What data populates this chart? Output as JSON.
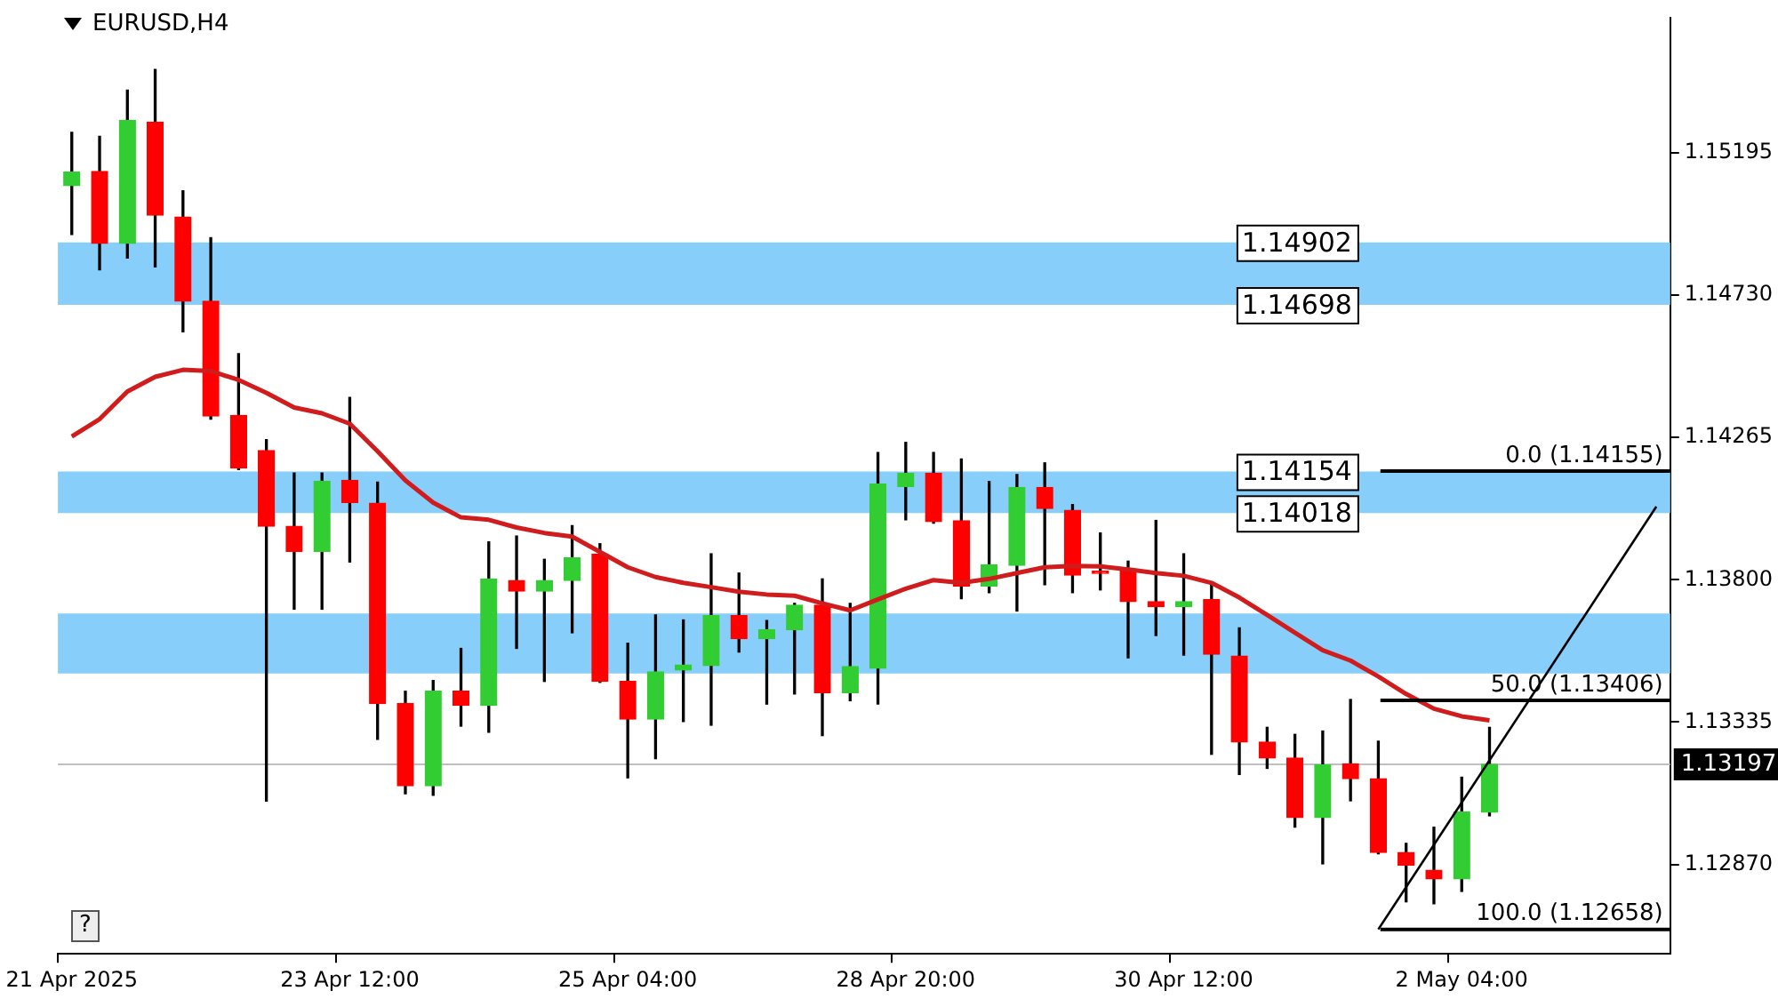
{
  "chart_data": {
    "type": "candlestick",
    "title": "EURUSD,H4",
    "categories": [
      "21 Apr 2025",
      null,
      null,
      null,
      null,
      null,
      null,
      null,
      null,
      null,
      "23 Apr 12:00",
      null,
      null,
      null,
      null,
      null,
      null,
      null,
      null,
      null,
      "25 Apr 04:00",
      null,
      null,
      null,
      null,
      null,
      null,
      null,
      null,
      null,
      "28 Apr 20:00",
      null,
      null,
      null,
      null,
      null,
      null,
      null,
      null,
      null,
      "30 Apr 12:00",
      null,
      null,
      null,
      null,
      null,
      null,
      null,
      null,
      null,
      "2 May 04:00",
      null,
      null,
      null,
      null,
      null,
      null,
      null
    ],
    "ohlc": [
      [
        1.15088,
        1.15262,
        1.14928,
        1.15132
      ],
      [
        1.15134,
        1.15249,
        1.14813,
        1.14899
      ],
      [
        1.14899,
        1.154,
        1.14851,
        1.15301
      ],
      [
        1.15295,
        1.15467,
        1.14822,
        1.14991
      ],
      [
        1.14985,
        1.15071,
        1.1461,
        1.1471
      ],
      [
        1.1471,
        1.14918,
        1.14325,
        1.14335
      ],
      [
        1.14337,
        1.14539,
        1.1416,
        1.14165
      ],
      [
        1.14222,
        1.14258,
        1.13077,
        1.13975
      ],
      [
        1.13975,
        1.14149,
        1.13704,
        1.13893
      ],
      [
        1.13893,
        1.14149,
        1.13704,
        1.14122
      ],
      [
        1.14125,
        1.14396,
        1.13858,
        1.14053
      ],
      [
        1.1405,
        1.14119,
        1.13279,
        1.13396
      ],
      [
        1.13396,
        1.13436,
        1.13101,
        1.13127
      ],
      [
        1.13127,
        1.13471,
        1.13096,
        1.13436
      ],
      [
        1.13436,
        1.13576,
        1.13322,
        1.1339
      ],
      [
        1.1339,
        1.13924,
        1.13302,
        1.13803
      ],
      [
        1.13798,
        1.13943,
        1.13576,
        1.13763
      ],
      [
        1.13763,
        1.13867,
        1.13468,
        1.13798
      ],
      [
        1.13798,
        1.13977,
        1.13627,
        1.13872
      ],
      [
        1.13884,
        1.13918,
        1.13465,
        1.13468
      ],
      [
        1.13468,
        1.13593,
        1.13153,
        1.13345
      ],
      [
        1.13345,
        1.13685,
        1.13216,
        1.13499
      ],
      [
        1.13505,
        1.13669,
        1.13337,
        1.13522
      ],
      [
        1.1352,
        1.13885,
        1.13325,
        1.13683
      ],
      [
        1.13683,
        1.13822,
        1.13564,
        1.13608
      ],
      [
        1.13608,
        1.13667,
        1.13394,
        1.13637
      ],
      [
        1.13637,
        1.13723,
        1.13427,
        1.13717
      ],
      [
        1.13717,
        1.13803,
        1.13291,
        1.13431
      ],
      [
        1.13431,
        1.13723,
        1.13405,
        1.13517
      ],
      [
        1.13511,
        1.14216,
        1.13394,
        1.14113
      ],
      [
        1.14105,
        1.14249,
        1.13996,
        1.14148
      ],
      [
        1.14148,
        1.14216,
        1.13985,
        1.1399
      ],
      [
        1.13993,
        1.14195,
        1.13738,
        1.1378
      ],
      [
        1.1378,
        1.14121,
        1.13758,
        1.13849
      ],
      [
        1.13847,
        1.14144,
        1.13698,
        1.14102
      ],
      [
        1.14102,
        1.14182,
        1.13784,
        1.14033
      ],
      [
        1.14027,
        1.14046,
        1.13758,
        1.13815
      ],
      [
        1.13828,
        1.13953,
        1.13767,
        1.13821
      ],
      [
        1.13834,
        1.13861,
        1.13545,
        1.13729
      ],
      [
        1.13729,
        1.13994,
        1.13618,
        1.13712
      ],
      [
        1.13712,
        1.13885,
        1.13554,
        1.13729
      ],
      [
        1.13735,
        1.1379,
        1.1323,
        1.13557
      ],
      [
        1.13551,
        1.13643,
        1.13164,
        1.1327
      ],
      [
        1.1327,
        1.13318,
        1.13184,
        1.13218
      ],
      [
        1.13218,
        1.13295,
        1.12992,
        1.13023
      ],
      [
        1.13023,
        1.13306,
        1.12872,
        1.13195
      ],
      [
        1.13199,
        1.13409,
        1.13078,
        1.1315
      ],
      [
        1.1315,
        1.13273,
        1.12905,
        1.12909
      ],
      [
        1.12909,
        1.12939,
        1.12748,
        1.12868
      ],
      [
        1.12851,
        1.12992,
        1.12742,
        1.12823
      ],
      [
        1.12823,
        1.13155,
        1.12782,
        1.13041
      ],
      [
        1.13041,
        1.13318,
        1.13029,
        1.13197
      ],
      null,
      null,
      null,
      null,
      null,
      null
    ],
    "colors": [
      "#32cd32",
      "#ff0000",
      "#32cd32",
      "#ff0000",
      "#ff0000",
      "#ff0000",
      "#ff0000",
      "#ff0000",
      "#ff0000",
      "#32cd32",
      "#ff0000",
      "#ff0000",
      "#ff0000",
      "#32cd32",
      "#ff0000",
      "#32cd32",
      "#ff0000",
      "#32cd32",
      "#32cd32",
      "#ff0000",
      "#ff0000",
      "#32cd32",
      "#32cd32",
      "#32cd32",
      "#ff0000",
      "#32cd32",
      "#32cd32",
      "#ff0000",
      "#32cd32",
      "#32cd32",
      "#32cd32",
      "#ff0000",
      "#ff0000",
      "#32cd32",
      "#32cd32",
      "#ff0000",
      "#ff0000",
      "#ff0000",
      "#ff0000",
      "#ff0000",
      "#32cd32",
      "#ff0000",
      "#ff0000",
      "#ff0000",
      "#ff0000",
      "#32cd32",
      "#ff0000",
      "#ff0000",
      "#ff0000",
      "#ff0000",
      "#32cd32",
      "#32cd32",
      null,
      null,
      null,
      null,
      null,
      null
    ],
    "series": [
      {
        "type": "line",
        "color": "#d01c1c",
        "values": [
          1.14268,
          1.14325,
          1.14415,
          1.14463,
          1.14486,
          1.14482,
          1.14453,
          1.14411,
          1.14363,
          1.14344,
          1.1431,
          1.1422,
          1.14125,
          1.14052,
          1.14004,
          1.13996,
          1.13971,
          1.13953,
          1.13941,
          1.13891,
          1.13841,
          1.13809,
          1.1379,
          1.13776,
          1.13761,
          1.13752,
          1.13748,
          1.13723,
          1.137,
          1.13736,
          1.13771,
          1.13799,
          1.1379,
          1.13803,
          1.13822,
          1.13841,
          1.13845,
          1.13844,
          1.13834,
          1.13822,
          1.13813,
          1.1379,
          1.13742,
          1.13685,
          1.13627,
          1.1357,
          1.13536,
          1.13484,
          1.13427,
          1.13379,
          1.13354,
          1.13341,
          null,
          null,
          null,
          null,
          null,
          null
        ]
      },
      {
        "type": "line",
        "color": "#000000",
        "values": [
          null,
          null,
          null,
          null,
          null,
          null,
          null,
          null,
          null,
          null,
          null,
          null,
          null,
          null,
          null,
          null,
          null,
          null,
          null,
          null,
          null,
          null,
          null,
          null,
          null,
          null,
          null,
          null,
          null,
          null,
          null,
          null,
          null,
          null,
          null,
          null,
          null,
          null,
          null,
          null,
          null,
          null,
          null,
          null,
          null,
          null,
          null,
          1.12658,
          null,
          null,
          null,
          null,
          null,
          null,
          null,
          null,
          null,
          1.14039
        ]
      }
    ],
    "ylim": [
      1.12578,
      1.15635
    ],
    "yticks": [
      1.15195,
      {
        "value": 1.1473,
        "label": "1.14730"
      },
      1.14265,
      {
        "value": 1.138,
        "label": "1.13800"
      },
      1.13335,
      {
        "value": 1.1287,
        "label": "1.12870"
      }
    ],
    "bands": [
      {
        "axis": "y",
        "from": 1.14698,
        "to": 1.14902,
        "color": "#87cefa"
      },
      {
        "axis": "y",
        "from": 1.14018,
        "to": 1.14154,
        "color": "#87cefa"
      },
      {
        "axis": "y",
        "from": 1.13494,
        "to": 1.1369,
        "color": "#87cefa"
      }
    ],
    "ref_lines": [
      {
        "axis": "y",
        "value": 1.14155,
        "label": "0.0 (1.14155)",
        "color": "#000000"
      },
      {
        "axis": "y",
        "value": 1.13406,
        "label": "50.0 (1.13406)",
        "color": "#000000"
      },
      {
        "axis": "y",
        "value": 1.12658,
        "label": "100.0 (1.12658)",
        "color": "#000000"
      },
      {
        "axis": "y",
        "value": 1.13197,
        "label": "1.13197",
        "color": "#c0c0c0"
      }
    ],
    "annotations": [
      "?",
      {
        "text": "1.14902",
        "y": 1.14902
      },
      {
        "text": "1.14698",
        "y": 1.14698
      },
      {
        "text": "1.14154",
        "y": 1.14154
      },
      {
        "text": "1.14018",
        "y": 1.14018
      }
    ],
    "grid": false,
    "legend": false
  }
}
